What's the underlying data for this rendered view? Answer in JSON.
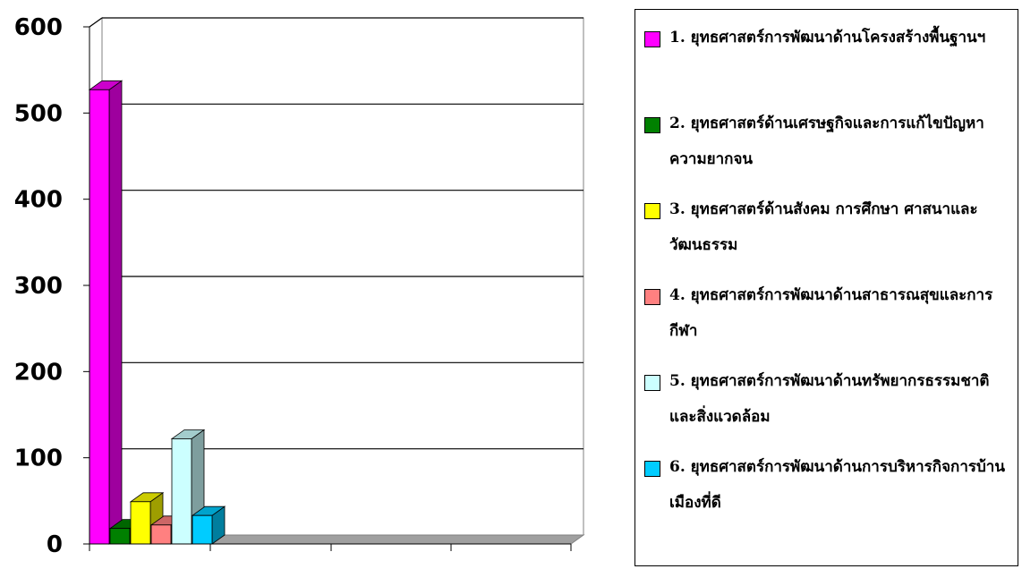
{
  "chart_data": {
    "type": "bar",
    "title": "",
    "xlabel": "",
    "ylabel": "",
    "ylim": [
      0,
      600
    ],
    "y_ticks": [
      "0",
      "100",
      "200",
      "300",
      "400",
      "500",
      "600"
    ],
    "grid": true,
    "legend_position": "right",
    "bar_style": "3d",
    "categories": [
      ""
    ],
    "series": [
      {
        "name": "1. ยุทธศาสตร์การพัฒนาด้านโครงสร้างพื้นฐานฯ",
        "values": [
          527
        ],
        "color": "#ff00ff"
      },
      {
        "name": "2. ยุทธศาสตร์ด้านเศรษฐกิจและการแก้ไขปัญหาความยากจน",
        "values": [
          18
        ],
        "color": "#008000"
      },
      {
        "name": "3. ยุทธศาสตร์ด้านสังคม การศึกษา ศาสนาและวัฒนธรรม",
        "values": [
          49
        ],
        "color": "#ffff00"
      },
      {
        "name": "4. ยุทธศาสตร์การพัฒนาด้านสาธารณสุขและการกีฬา",
        "values": [
          22
        ],
        "color": "#ff8080"
      },
      {
        "name": "5. ยุทธศาสตร์การพัฒนาด้านทรัพยากรธรรมชาติและสิ่งแวดล้อม",
        "values": [
          122
        ],
        "color": "#ccffff"
      },
      {
        "name": "6. ยุทธศาสตร์การพัฒนาด้านการบริหารกิจการบ้านเมืองที่ดี",
        "values": [
          33
        ],
        "color": "#00ccff"
      }
    ]
  }
}
